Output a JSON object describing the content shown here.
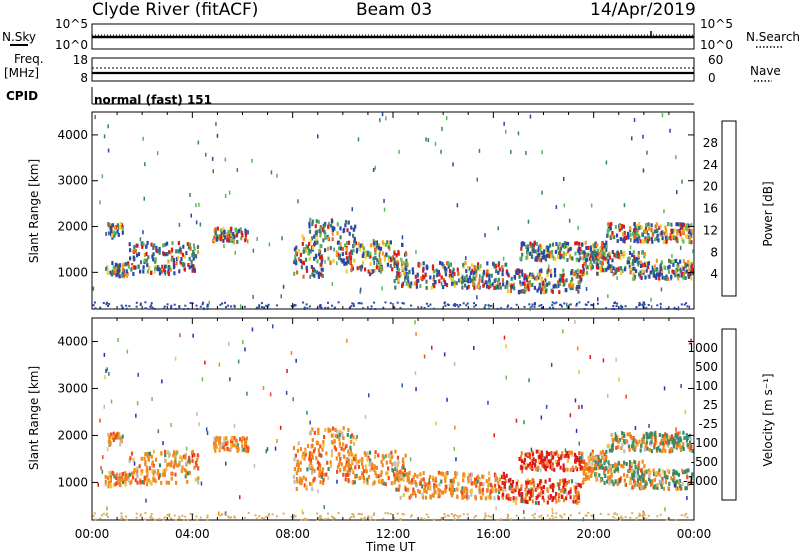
{
  "header": {
    "title": "Clyde River (fitACF)",
    "beam": "Beam 03",
    "date": "14/Apr/2019"
  },
  "side_labels": {
    "nsky": "N.Sky",
    "freq": "Freq.",
    "mhz": "[MHz]",
    "cpid": "CPID",
    "nsearch": "N.Search",
    "nave": "Nave",
    "mode": "normal (fast) 151"
  },
  "colors": {
    "power": [
      "#1414e6",
      "#2848a8",
      "#38806a",
      "#5cb858",
      "#f0d030",
      "#f09a20",
      "#e86418",
      "#e01818"
    ],
    "velocity": [
      "#e01818",
      "#f24a18",
      "#f08a20",
      "#f0c040",
      "#bdbdbd",
      "#70c050",
      "#3a8a6a",
      "#2a52a0",
      "#2030c0"
    ]
  },
  "chart_data": [
    {
      "type": "line",
      "title": "N.Sky / N.Search",
      "ylabel": "N.Sky",
      "ylim_label": [
        "10^0",
        "10^5"
      ],
      "right_label": "N.Search",
      "ticks": [
        "10^5",
        "10^0"
      ]
    },
    {
      "type": "line",
      "title": "Freq / Nave",
      "ylabel": "Freq. [MHz]",
      "left_ticks": [
        "18",
        "8"
      ],
      "right_ticks": [
        "60",
        "0"
      ],
      "right_label": "Nave",
      "frequency_mhz": 10.3
    },
    {
      "type": "heatmap",
      "ylabel": "Slant Range [km]",
      "y_ticks": [
        "1000",
        "2000",
        "3000",
        "4000"
      ],
      "ylim": [
        200,
        4500
      ],
      "x_ticks": [
        "00:00",
        "04:00",
        "08:00",
        "12:00",
        "16:00",
        "20:00",
        "00:00"
      ],
      "xlim_hours": [
        0,
        24
      ],
      "colorbar_label": "Power [dB]",
      "colorbar_ticks": [
        "28",
        "24",
        "20",
        "16",
        "12",
        "8",
        "4"
      ]
    },
    {
      "type": "heatmap",
      "ylabel": "Slant Range [km]",
      "y_ticks": [
        "1000",
        "2000",
        "3000",
        "4000"
      ],
      "ylim": [
        200,
        4500
      ],
      "x_ticks": [
        "00:00",
        "04:00",
        "08:00",
        "12:00",
        "16:00",
        "20:00",
        "00:00"
      ],
      "xlim_hours": [
        0,
        24
      ],
      "xlabel": "Time UT",
      "colorbar_label": "Velocity [m s⁻¹]",
      "colorbar_ticks": [
        "1000",
        "500",
        "100",
        "25",
        "-25",
        "-100",
        "-500",
        "-1000"
      ]
    }
  ]
}
